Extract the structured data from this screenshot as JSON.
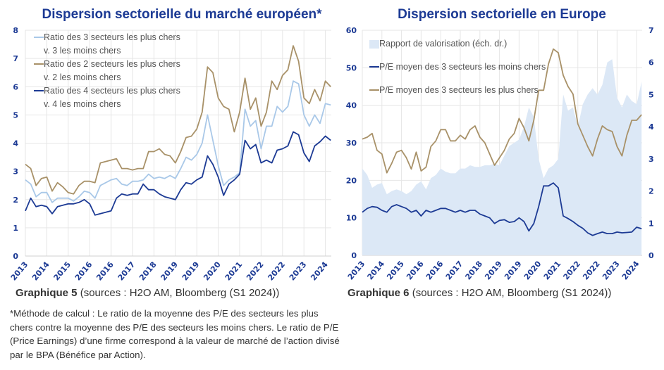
{
  "chart_data": [
    {
      "type": "line",
      "title": "Dispersion sectorielle du marché européen*",
      "x_tick_labels": [
        "2013",
        "2014",
        "2015",
        "2016",
        "2016",
        "2017",
        "2018",
        "2019",
        "2019",
        "2020",
        "2021",
        "2022",
        "2022",
        "2023",
        "2024"
      ],
      "ylim": [
        0,
        8
      ],
      "y_ticks": [
        0,
        1,
        2,
        3,
        4,
        5,
        6,
        7,
        8
      ],
      "grid": true,
      "legend_position": "top-left",
      "series": [
        {
          "name": "Ratio des 3 secteurs les plus chers v. 3 les moins chers",
          "legend_lines": [
            "Ratio des 3 secteurs les plus chers",
            "v. 3 les moins chers"
          ],
          "color": "#a9c8e8",
          "values": [
            2.7,
            2.55,
            2.1,
            2.25,
            2.25,
            1.9,
            2.05,
            2.05,
            2.05,
            1.95,
            2.1,
            2.3,
            2.25,
            2.05,
            2.5,
            2.6,
            2.7,
            2.75,
            2.55,
            2.5,
            2.65,
            2.65,
            2.7,
            2.9,
            2.75,
            2.8,
            2.75,
            2.85,
            2.75,
            3.1,
            3.5,
            3.4,
            3.6,
            4.0,
            5.0,
            4.1,
            3.2,
            2.5,
            2.7,
            2.8,
            2.95,
            5.2,
            4.6,
            4.8,
            3.8,
            4.6,
            4.6,
            5.3,
            5.1,
            5.3,
            6.2,
            6.1,
            5.0,
            4.6,
            5.0,
            4.7,
            5.4,
            5.35
          ]
        },
        {
          "name": "Ratio des 2 secteurs les plus chers v. 2 les moins chers",
          "legend_lines": [
            "Ratio des 2 secteurs les plus chers",
            "v. 2 les moins chers"
          ],
          "color": "#a89168",
          "values": [
            3.25,
            3.1,
            2.5,
            2.75,
            2.8,
            2.3,
            2.6,
            2.45,
            2.25,
            2.2,
            2.5,
            2.65,
            2.65,
            2.6,
            3.3,
            3.35,
            3.4,
            3.45,
            3.1,
            3.1,
            3.05,
            3.1,
            3.1,
            3.7,
            3.7,
            3.8,
            3.6,
            3.55,
            3.3,
            3.7,
            4.2,
            4.25,
            4.5,
            5.1,
            6.7,
            6.5,
            5.6,
            5.3,
            5.2,
            4.4,
            5.1,
            6.3,
            5.2,
            5.6,
            4.6,
            5.1,
            6.2,
            5.9,
            6.4,
            6.6,
            7.45,
            6.9,
            5.6,
            5.4,
            5.9,
            5.5,
            6.2,
            6.0
          ]
        },
        {
          "name": "Ratio des 4 secteurs les plus chers v. 4 les moins chers",
          "legend_lines": [
            "Ratio des 4 secteurs les plus chers",
            "v. 4 les moins chers"
          ],
          "color": "#1c3a94",
          "values": [
            1.6,
            2.05,
            1.75,
            1.8,
            1.75,
            1.5,
            1.75,
            1.8,
            1.85,
            1.85,
            1.9,
            2.0,
            1.85,
            1.45,
            1.5,
            1.55,
            1.6,
            2.05,
            2.2,
            2.15,
            2.2,
            2.2,
            2.55,
            2.35,
            2.35,
            2.2,
            2.1,
            2.05,
            2.0,
            2.35,
            2.6,
            2.55,
            2.7,
            2.8,
            3.55,
            3.25,
            2.8,
            2.15,
            2.55,
            2.7,
            2.9,
            4.1,
            3.8,
            3.95,
            3.3,
            3.4,
            3.3,
            3.75,
            3.8,
            3.9,
            4.4,
            4.3,
            3.65,
            3.35,
            3.9,
            4.05,
            4.25,
            4.1
          ]
        }
      ]
    },
    {
      "type": "line",
      "title": "Dispersion sectorielle en Europe",
      "x_tick_labels": [
        "2013",
        "2014",
        "2015",
        "2016",
        "2016",
        "2017",
        "2018",
        "2019",
        "2019",
        "2020",
        "2021",
        "2022",
        "2022",
        "2023",
        "2024"
      ],
      "ylim": [
        0,
        60
      ],
      "y_ticks": [
        0,
        10,
        20,
        30,
        40,
        50,
        60
      ],
      "y2lim": [
        0,
        7
      ],
      "y2_ticks": [
        0,
        1,
        2,
        3,
        4,
        5,
        6,
        7
      ],
      "grid": true,
      "legend_position": "top-left",
      "series": [
        {
          "name": "Rapport de valorisation (éch. dr.)",
          "type": "area",
          "axis": "right",
          "color": "#dce8f6",
          "values": [
            2.7,
            2.5,
            2.1,
            2.2,
            2.25,
            1.9,
            2.0,
            2.05,
            2.0,
            1.9,
            2.0,
            2.2,
            2.3,
            2.05,
            2.4,
            2.5,
            2.7,
            2.6,
            2.55,
            2.55,
            2.7,
            2.7,
            2.8,
            2.75,
            2.75,
            2.8,
            2.8,
            2.85,
            2.8,
            3.1,
            3.4,
            3.5,
            3.6,
            4.0,
            4.6,
            4.3,
            3.0,
            2.4,
            2.7,
            2.8,
            3.0,
            5.0,
            4.5,
            4.6,
            4.0,
            4.7,
            5.0,
            5.2,
            5.0,
            5.3,
            6.0,
            6.1,
            4.9,
            4.6,
            5.0,
            4.8,
            4.7,
            5.4
          ]
        },
        {
          "name": "P/E moyen des 3 secteurs les moins chers",
          "type": "line",
          "axis": "left",
          "color": "#1c3a94",
          "values": [
            11.5,
            12.5,
            13,
            12.8,
            12,
            11.5,
            13,
            13.5,
            13,
            12.5,
            11.5,
            12,
            10.5,
            12,
            11.5,
            12,
            12.5,
            12.5,
            12,
            11.5,
            12,
            11.5,
            12,
            12,
            11,
            10.5,
            10,
            8.5,
            9.3,
            9.5,
            8.8,
            9,
            10,
            9,
            6.5,
            8.5,
            13,
            18.5,
            18.5,
            19.3,
            18,
            10.5,
            9.8,
            9,
            8,
            7.2,
            6,
            5.3,
            5.8,
            6.2,
            5.8,
            5.8,
            6.2,
            6,
            6.1,
            6.2,
            7.5,
            7.1
          ]
        },
        {
          "name": "P/E moyen des 3 secteurs les plus chers",
          "type": "line",
          "axis": "left",
          "color": "#a89168",
          "values": [
            31,
            31.5,
            32.5,
            28,
            27,
            22,
            24.5,
            27.5,
            28,
            26,
            23,
            27.5,
            22.5,
            23.5,
            29,
            30.5,
            33.5,
            33.5,
            30.5,
            30.5,
            32,
            31,
            33.5,
            34.5,
            31.5,
            30,
            27,
            24,
            26,
            28,
            31,
            32.5,
            36.5,
            34,
            30.5,
            36,
            44,
            44,
            51,
            55,
            54,
            48,
            45,
            43,
            35,
            32,
            29,
            26.5,
            31,
            34.5,
            33.5,
            33,
            29,
            26.5,
            32,
            36,
            36,
            37.5
          ]
        }
      ]
    }
  ],
  "captions": {
    "left_label": "Graphique 5",
    "left_sources": "(sources : H2O AM, Bloomberg (S1 2024))",
    "right_label": "Graphique 6",
    "right_sources": "(sources : H2O AM, Bloomberg (S1 2024))",
    "note": "*Méthode de calcul : Le ratio de la moyenne des P/E des secteurs les plus chers contre la moyenne des P/E des secteurs les moins chers. Le ratio de P/E (Price Earnings) d’une firme correspond à la valeur de marché de l’action divisé par le BPA (Bénéfice par Action)."
  }
}
